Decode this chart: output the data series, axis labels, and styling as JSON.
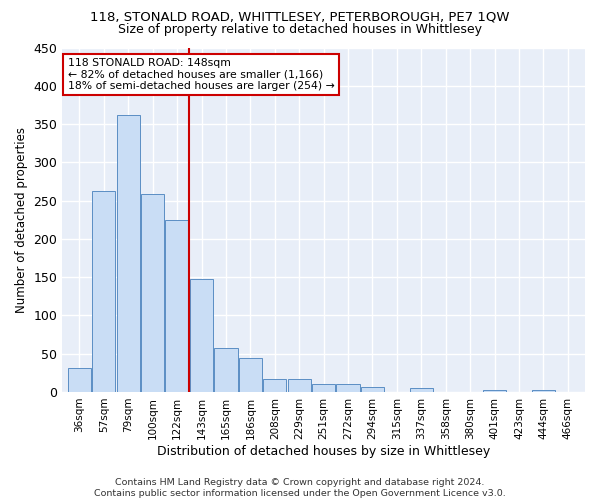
{
  "title": "118, STONALD ROAD, WHITTLESEY, PETERBOROUGH, PE7 1QW",
  "subtitle": "Size of property relative to detached houses in Whittlesey",
  "xlabel": "Distribution of detached houses by size in Whittlesey",
  "ylabel": "Number of detached properties",
  "categories": [
    "36sqm",
    "57sqm",
    "79sqm",
    "100sqm",
    "122sqm",
    "143sqm",
    "165sqm",
    "186sqm",
    "208sqm",
    "229sqm",
    "251sqm",
    "272sqm",
    "294sqm",
    "315sqm",
    "337sqm",
    "358sqm",
    "380sqm",
    "401sqm",
    "423sqm",
    "444sqm",
    "466sqm"
  ],
  "values": [
    31,
    262,
    362,
    258,
    225,
    148,
    57,
    44,
    17,
    17,
    10,
    10,
    6,
    0,
    5,
    0,
    0,
    2,
    0,
    2,
    0
  ],
  "bar_color": "#c9ddf5",
  "bar_edge_color": "#5b8ec4",
  "vline_x_index": 5,
  "vline_color": "#cc0000",
  "annotation_line1": "118 STONALD ROAD: 148sqm",
  "annotation_line2": "← 82% of detached houses are smaller (1,166)",
  "annotation_line3": "18% of semi-detached houses are larger (254) →",
  "annotation_box_color": "#ffffff",
  "annotation_box_edge": "#cc0000",
  "footer": "Contains HM Land Registry data © Crown copyright and database right 2024.\nContains public sector information licensed under the Open Government Licence v3.0.",
  "ylim": [
    0,
    450
  ],
  "yticks": [
    0,
    50,
    100,
    150,
    200,
    250,
    300,
    350,
    400,
    450
  ],
  "fig_bg_color": "#ffffff",
  "plot_bg_color": "#e8eef8",
  "grid_color": "#ffffff",
  "title_fontsize": 9.5,
  "subtitle_fontsize": 9.0
}
